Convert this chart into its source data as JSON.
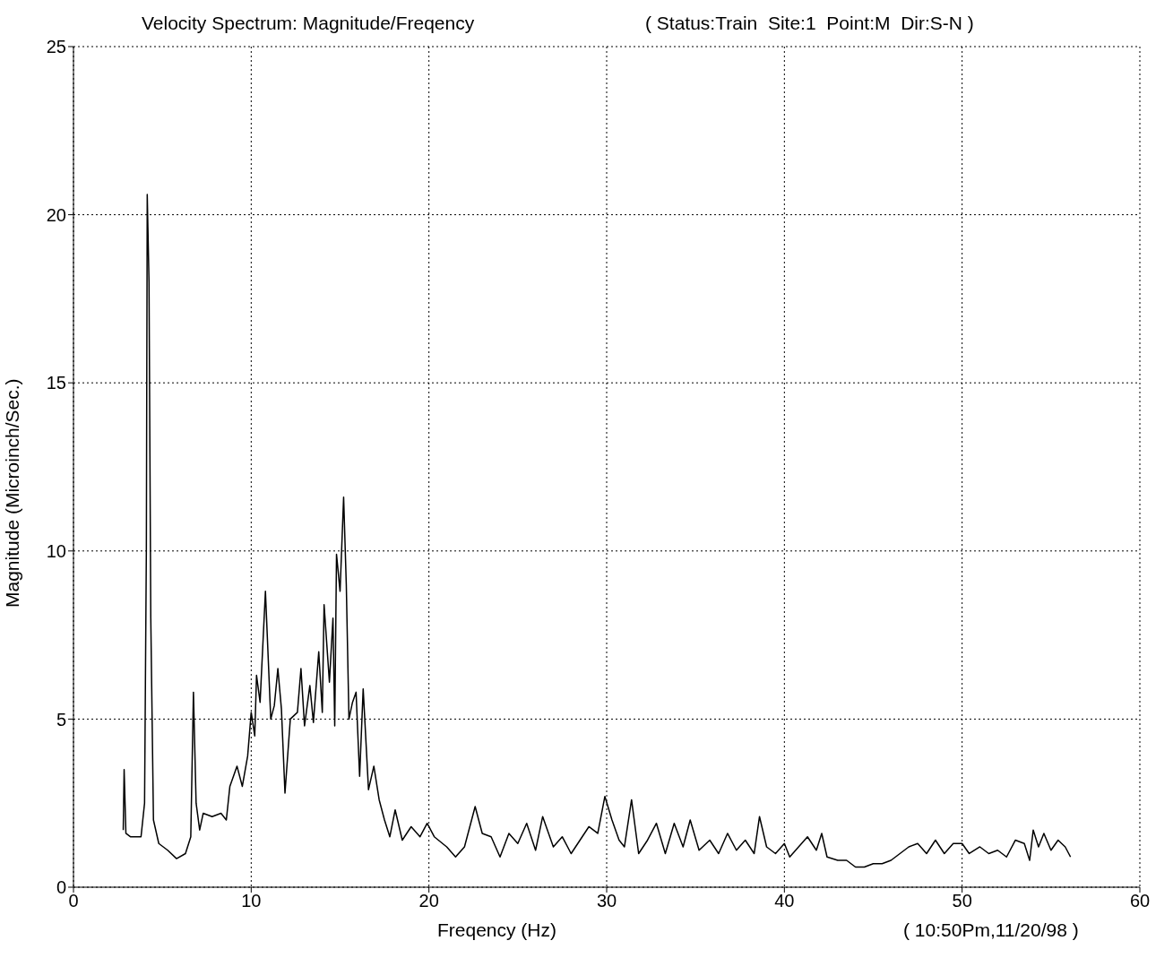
{
  "chart_data": {
    "type": "line",
    "title": "Velocity Spectrum: Magnitude/Freqency",
    "subtitle": "( Status:Train  Site:1  Point:M  Dir:S-N )",
    "xlabel": "Freqency (Hz)",
    "ylabel": "Magnitude (Microinch/Sec.)",
    "annotations": [
      "( 10:50Pm,11/20/98 )"
    ],
    "x": [
      2.8,
      2.85,
      2.95,
      3.2,
      3.5,
      3.8,
      4.0,
      4.1,
      4.15,
      4.25,
      4.35,
      4.5,
      4.8,
      5.3,
      5.8,
      6.3,
      6.6,
      6.75,
      6.9,
      7.1,
      7.3,
      7.8,
      8.3,
      8.6,
      8.8,
      9.2,
      9.5,
      9.8,
      10.0,
      10.2,
      10.3,
      10.5,
      10.8,
      11.1,
      11.3,
      11.5,
      11.7,
      11.9,
      12.2,
      12.6,
      12.8,
      13.0,
      13.3,
      13.5,
      13.8,
      14.0,
      14.1,
      14.4,
      14.6,
      14.7,
      14.8,
      15.0,
      15.2,
      15.35,
      15.5,
      15.7,
      15.9,
      16.1,
      16.3,
      16.6,
      16.9,
      17.2,
      17.5,
      17.8,
      18.1,
      18.5,
      19.0,
      19.5,
      19.9,
      20.3,
      21.0,
      21.5,
      22.0,
      22.6,
      23.0,
      23.5,
      24.0,
      24.5,
      25.0,
      25.5,
      26.0,
      26.4,
      27.0,
      27.5,
      28.0,
      28.5,
      29.0,
      29.5,
      29.9,
      30.3,
      30.7,
      31.0,
      31.4,
      31.8,
      32.3,
      32.8,
      33.3,
      33.8,
      34.3,
      34.7,
      35.2,
      35.8,
      36.3,
      36.8,
      37.3,
      37.8,
      38.3,
      38.6,
      39.0,
      39.5,
      40.0,
      40.3,
      40.8,
      41.3,
      41.8,
      42.1,
      42.4,
      43.0,
      43.5,
      44.0,
      44.5,
      45.0,
      45.5,
      46.0,
      46.5,
      47.0,
      47.5,
      48.0,
      48.5,
      49.0,
      49.5,
      50.0,
      50.4,
      51.0,
      51.5,
      52.0,
      52.5,
      53.0,
      53.5,
      53.8,
      54.0,
      54.3,
      54.6,
      55.0,
      55.4,
      55.8,
      56.1
    ],
    "series": [
      {
        "color": "#000000",
        "values": [
          1.7,
          3.5,
          1.6,
          1.5,
          1.5,
          1.5,
          2.5,
          10,
          20.6,
          18,
          8,
          2,
          1.3,
          1.1,
          0.85,
          1.0,
          1.5,
          5.8,
          2.5,
          1.7,
          2.2,
          2.1,
          2.2,
          2.0,
          3.0,
          3.6,
          3.0,
          3.9,
          5.2,
          4.5,
          6.3,
          5.5,
          8.8,
          5.0,
          5.4,
          6.5,
          5.3,
          2.8,
          5.0,
          5.2,
          6.5,
          4.8,
          6.0,
          4.9,
          7.0,
          5.2,
          8.4,
          6.1,
          8.0,
          4.8,
          9.9,
          8.8,
          11.6,
          9.0,
          5.0,
          5.5,
          5.8,
          3.3,
          5.9,
          2.9,
          3.6,
          2.6,
          2.0,
          1.5,
          2.3,
          1.4,
          1.8,
          1.5,
          1.9,
          1.5,
          1.2,
          0.9,
          1.2,
          2.4,
          1.6,
          1.5,
          0.9,
          1.6,
          1.3,
          1.9,
          1.1,
          2.1,
          1.2,
          1.5,
          1.0,
          1.4,
          1.8,
          1.6,
          2.7,
          2.0,
          1.4,
          1.2,
          2.6,
          1.0,
          1.4,
          1.9,
          1.0,
          1.9,
          1.2,
          2.0,
          1.1,
          1.4,
          1.0,
          1.6,
          1.1,
          1.4,
          1.0,
          2.1,
          1.2,
          1.0,
          1.3,
          0.9,
          1.2,
          1.5,
          1.1,
          1.6,
          0.9,
          0.8,
          0.8,
          0.6,
          0.6,
          0.7,
          0.7,
          0.8,
          1.0,
          1.2,
          1.3,
          1.0,
          1.4,
          1.0,
          1.3,
          1.3,
          1.0,
          1.2,
          1.0,
          1.1,
          0.9,
          1.4,
          1.3,
          0.8,
          1.7,
          1.2,
          1.6,
          1.1,
          1.4,
          1.2,
          0.9
        ]
      }
    ],
    "xlim": [
      0,
      60
    ],
    "xticks": [
      0,
      10,
      20,
      30,
      40,
      50,
      60
    ],
    "ylim": [
      0,
      25
    ],
    "yticks": [
      0,
      5,
      10,
      15,
      20,
      25
    ],
    "grid": true,
    "marker": "none",
    "line_style": "solid"
  }
}
